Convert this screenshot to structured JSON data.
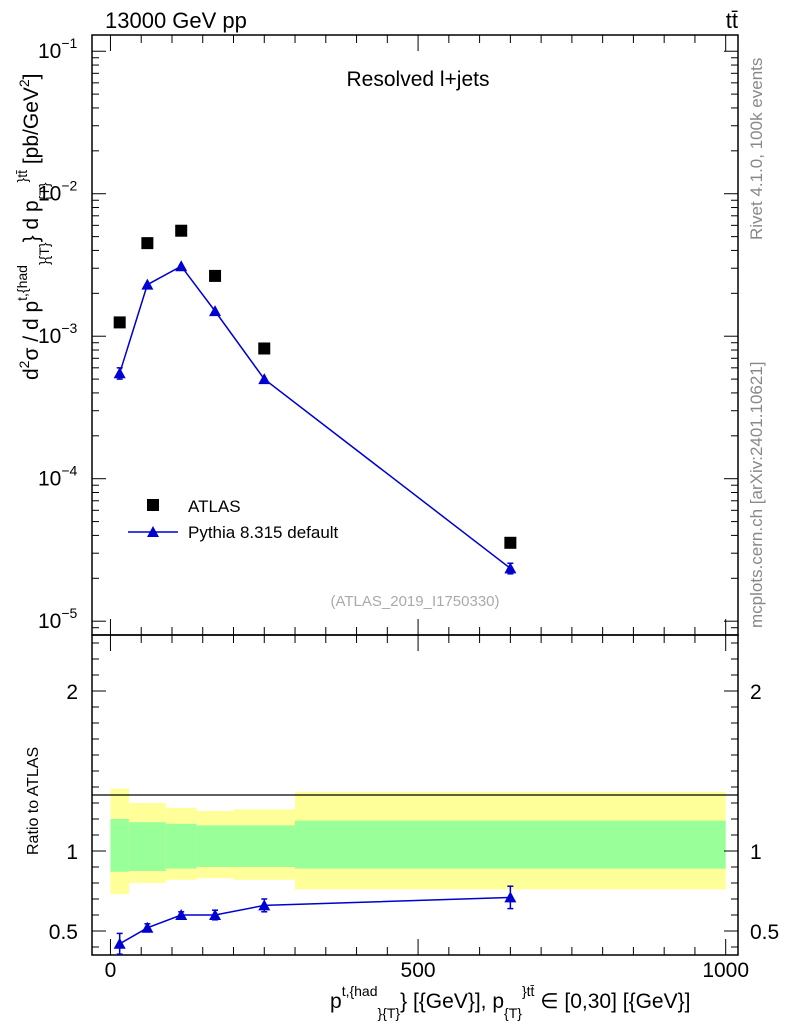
{
  "header": {
    "energy_label": "13000 GeV pp",
    "process_label": "tt̄",
    "annotation": "Resolved l+jets",
    "analysis_id": "(ATLAS_2019_I1750330)",
    "rivet_label": "Rivet 4.1.0,  100k events",
    "mcplots_label": "mcplots.cern.ch [arXiv:2401.10621]"
  },
  "chart_data": [
    {
      "type": "scatter",
      "panel": "main",
      "yscale": "log",
      "ylim": [
        8e-06,
        0.13
      ],
      "ylabel": "d²σ / d p_T^{t,had} d p_T^{tt̄} [pb/GeV²]",
      "yticks": [
        {
          "value": 1e-05,
          "base": "10",
          "exp": "−5"
        },
        {
          "value": 0.0001,
          "base": "10",
          "exp": "−4"
        },
        {
          "value": 0.001,
          "base": "10",
          "exp": "−3"
        },
        {
          "value": 0.01,
          "base": "10",
          "exp": "−2"
        },
        {
          "value": 0.1,
          "base": "10",
          "exp": "−1"
        }
      ],
      "legend_position": "bottom-left",
      "series": [
        {
          "name": "ATLAS",
          "marker": "square",
          "color": "#000000",
          "x": [
            15,
            60,
            115,
            170,
            250,
            650
          ],
          "y": [
            0.00125,
            0.0045,
            0.0055,
            0.00265,
            0.00082,
            3.55e-05
          ]
        },
        {
          "name": "Pythia 8.315 default",
          "marker": "triangle",
          "color": "#0000d0",
          "x": [
            15,
            60,
            115,
            170,
            250,
            650
          ],
          "y": [
            0.00055,
            0.0023,
            0.0031,
            0.0015,
            0.0005,
            2.35e-05
          ],
          "yerr": [
            5e-05,
            0,
            0,
            0,
            0,
            2e-06
          ]
        }
      ]
    },
    {
      "type": "line",
      "panel": "ratio",
      "ylabel": "Ratio to ATLAS",
      "ylim": [
        0.35,
        2.35
      ],
      "yticks": [
        {
          "value": 0.5,
          "label": "0.5"
        },
        {
          "value": 1,
          "label": "1"
        },
        {
          "value": 2,
          "label": "2"
        }
      ],
      "xlim": [
        -30,
        1020
      ],
      "xticks": [
        {
          "value": 0,
          "label": "0"
        },
        {
          "value": 500,
          "label": "500"
        },
        {
          "value": 1000,
          "label": "1000"
        }
      ],
      "xlabel": "p_T^{t,had} [GeV], p_T^{tt̄} ∈ [0,30] [GeV]",
      "bands": [
        {
          "x0": 0,
          "x1": 30,
          "inner": [
            0.87,
            1.2
          ],
          "outer": [
            0.73,
            1.39
          ]
        },
        {
          "x0": 30,
          "x1": 90,
          "inner": [
            0.875,
            1.18
          ],
          "outer": [
            0.8,
            1.3
          ]
        },
        {
          "x0": 90,
          "x1": 140,
          "inner": [
            0.89,
            1.17
          ],
          "outer": [
            0.82,
            1.27
          ]
        },
        {
          "x0": 140,
          "x1": 200,
          "inner": [
            0.9,
            1.16
          ],
          "outer": [
            0.83,
            1.25
          ]
        },
        {
          "x0": 200,
          "x1": 300,
          "inner": [
            0.9,
            1.16
          ],
          "outer": [
            0.82,
            1.26
          ]
        },
        {
          "x0": 300,
          "x1": 1000,
          "inner": [
            0.89,
            1.19
          ],
          "outer": [
            0.76,
            1.37
          ]
        }
      ],
      "band_colors": {
        "outer": "#ffff99",
        "inner": "#99ff99"
      },
      "series": [
        {
          "name": "Pythia 8.315 default",
          "color": "#0000d0",
          "x": [
            15,
            60,
            115,
            170,
            250,
            650
          ],
          "y": [
            0.42,
            0.52,
            0.6,
            0.6,
            0.66,
            0.71
          ],
          "yerr": [
            0.065,
            0.025,
            0.02,
            0.03,
            0.04,
            0.07
          ]
        }
      ]
    }
  ]
}
